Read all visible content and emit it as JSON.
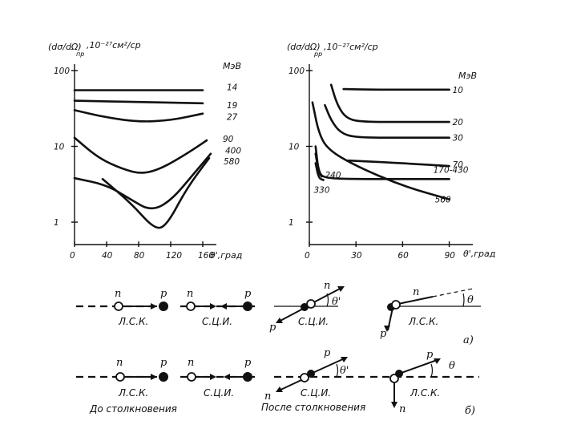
{
  "chart_data": [
    {
      "type": "line",
      "ylabel_main": "(dσ/dΩ)",
      "ylabel_sub": "пр",
      "ylabel_units": ",10⁻²⁷см²/ср",
      "unit_label": "МэВ",
      "xlabel": "θ',град",
      "log_y": true,
      "ylim": [
        0.6,
        100
      ],
      "xlim": [
        0,
        175
      ],
      "y_ticks": [
        1,
        10,
        100
      ],
      "y_tick_labels": [
        "1",
        "10",
        "100"
      ],
      "x_ticks": [
        0,
        40,
        80,
        120,
        160
      ],
      "x_tick_labels": [
        "0",
        "40",
        "80",
        "120",
        "160"
      ],
      "series": [
        {
          "name": "14",
          "x": [
            0,
            160
          ],
          "y": [
            55,
            55
          ]
        },
        {
          "name": "19",
          "x": [
            0,
            160
          ],
          "y": [
            40,
            37
          ]
        },
        {
          "name": "27",
          "x": [
            0,
            40,
            80,
            120,
            160
          ],
          "y": [
            30,
            24,
            21,
            22,
            27
          ]
        },
        {
          "name": "90",
          "x": [
            0,
            30,
            60,
            85,
            110,
            140,
            165
          ],
          "y": [
            13,
            7,
            5,
            4.3,
            5.2,
            8,
            12
          ]
        },
        {
          "name": "400",
          "x": [
            0,
            40,
            70,
            95,
            120,
            150,
            170
          ],
          "y": [
            3.8,
            3.1,
            2,
            1.4,
            1.9,
            4.5,
            8
          ]
        },
        {
          "name": "580",
          "x": [
            35,
            70,
            100,
            115,
            140,
            168
          ],
          "y": [
            3.7,
            1.8,
            0.8,
            0.9,
            2.8,
            7
          ]
        }
      ]
    },
    {
      "type": "line",
      "ylabel_main": "(dσ/dΩ)",
      "ylabel_sub": "pp",
      "ylabel_units": ",10⁻²⁷см²/ср",
      "unit_label": "МэВ",
      "xlabel": "θ',град",
      "log_y": true,
      "ylim": [
        0.6,
        100
      ],
      "xlim": [
        0,
        100
      ],
      "y_ticks": [
        1,
        10,
        100
      ],
      "y_tick_labels": [
        "1",
        "10",
        "100"
      ],
      "x_ticks": [
        0,
        30,
        60,
        90
      ],
      "x_tick_labels": [
        "0",
        "30",
        "60",
        "90"
      ],
      "series": [
        {
          "name": "10",
          "x": [
            22,
            40,
            60,
            90
          ],
          "y": [
            57,
            56,
            56,
            56
          ]
        },
        {
          "name": "20",
          "x": [
            14,
            18,
            24,
            35,
            60,
            90
          ],
          "y": [
            65,
            35,
            23,
            21,
            21,
            21
          ]
        },
        {
          "name": "30",
          "x": [
            10,
            14,
            20,
            30,
            60,
            90
          ],
          "y": [
            35,
            22,
            15,
            13,
            13,
            13
          ]
        },
        {
          "name": "70",
          "x": [
            25,
            60,
            90
          ],
          "y": [
            6.5,
            6,
            5.5
          ]
        },
        {
          "name": "170-430",
          "x": [
            4,
            6,
            10,
            30,
            60,
            90
          ],
          "y": [
            10,
            4.5,
            3.8,
            3.7,
            3.7,
            3.7
          ]
        },
        {
          "name": "560",
          "x": [
            2,
            6,
            12,
            30,
            60,
            90
          ],
          "y": [
            38,
            15,
            9,
            5.5,
            3,
            2
          ]
        },
        {
          "name": "240",
          "x": [
            4,
            6,
            8
          ],
          "y": [
            8,
            4.5,
            4
          ]
        },
        {
          "name": "330",
          "x": [
            4,
            6,
            9
          ],
          "y": [
            6,
            3.8,
            3.6
          ]
        }
      ],
      "annotations": [
        "240",
        "330"
      ]
    }
  ],
  "diagram": {
    "n": "n",
    "p": "p",
    "theta_prime": "θ'",
    "theta": "θ",
    "lsk": "Л.С.К.",
    "sci": "С.Ц.И.",
    "before": "До столкновения",
    "after": "После столкновения",
    "label_a": "а)",
    "label_b": "б)"
  }
}
